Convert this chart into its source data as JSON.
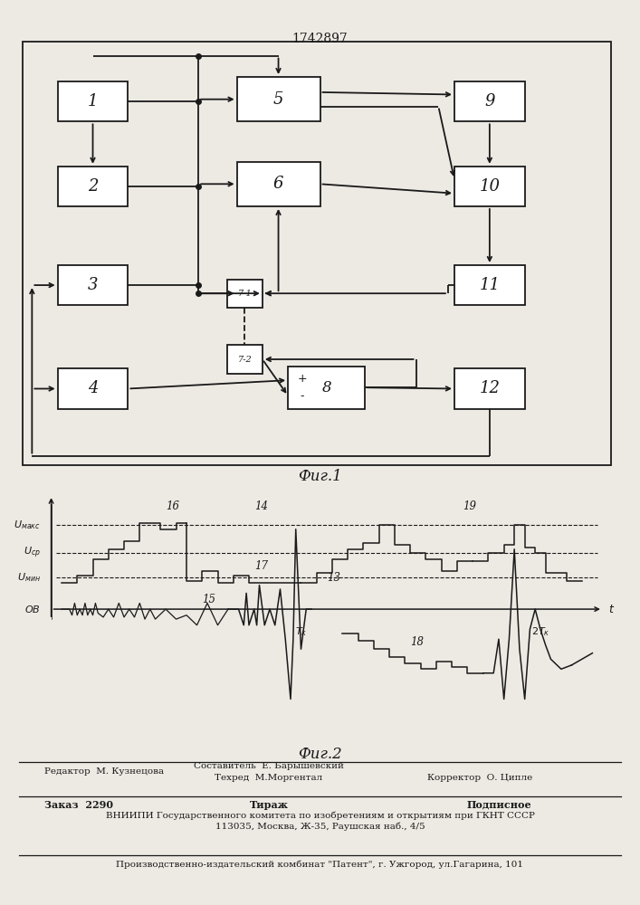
{
  "patent_number": "1742897",
  "fig1_caption": "Фиг.1",
  "fig2_caption": "Фиг.2",
  "bg": "#ede9e3",
  "lc": "#1a1a1a",
  "editor_line1": "Редактор  М. Кузнецова",
  "editor_line2": "Составитель  Е. Барышевский",
  "editor_line3": "Техред  М.Моргентал",
  "editor_line4": "Корректор  О. Ципле",
  "footer_order": "Заказ  2290",
  "footer_tir": "Тираж",
  "footer_pod": "Подписное",
  "footer_vn": "ВНИИПИ Государственного комитета по изобретениям и открытиям при ГКНТ СССР",
  "footer_addr": "113035, Москва, Ж-35, Раушская наб., 4/5",
  "footer_pub": "Производственно-издательский комбинат \"Патент\", г. Ужгород, ул.Гагарина, 101",
  "u_max": 42,
  "u_sr": 28,
  "u_min": 16
}
